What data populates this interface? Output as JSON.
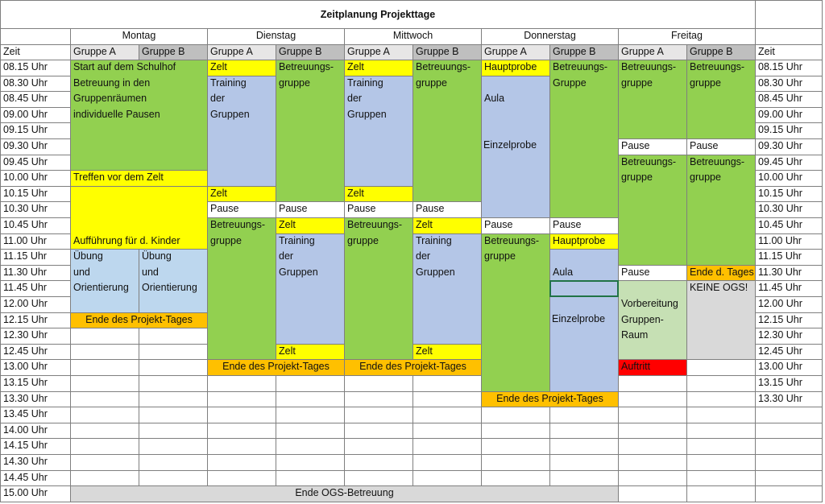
{
  "title": "Zeitplanung Projekttage",
  "time_label": "Zeit",
  "times": [
    "08.15 Uhr",
    "08.30 Uhr",
    "08.45 Uhr",
    "09.00 Uhr",
    "09.15 Uhr",
    "09.30 Uhr",
    "09.45 Uhr",
    "10.00 Uhr",
    "10.15 Uhr",
    "10.30 Uhr",
    "10.45 Uhr",
    "11.00 Uhr",
    "11.15 Uhr",
    "11.30 Uhr",
    "11.45 Uhr",
    "12.00 Uhr",
    "12.15 Uhr",
    "12.30 Uhr",
    "12.45 Uhr",
    "13.00 Uhr",
    "13.15 Uhr",
    "13.30 Uhr",
    "13.45 Uhr",
    "14.00 Uhr",
    "14.15 Uhr",
    "14.30 Uhr",
    "14.45 Uhr",
    "15.00 Uhr"
  ],
  "right_times": [
    "08.15 Uhr",
    "08.30 Uhr",
    "08.45 Uhr",
    "09.00 Uhr",
    "09.15 Uhr",
    "09.30 Uhr",
    "09.45 Uhr",
    "10.00 Uhr",
    "10.15 Uhr",
    "10.30 Uhr",
    "10.45 Uhr",
    "11.00 Uhr",
    "11.15 Uhr",
    "11.30 Uhr",
    "11.45 Uhr",
    "12.00 Uhr",
    "12.15 Uhr",
    "12.30 Uhr",
    "12.45 Uhr",
    "13.00 Uhr",
    "13.15 Uhr",
    "13.30 Uhr"
  ],
  "colors": {
    "green": "#92d050",
    "yellow": "#ffff00",
    "blue": "#b4c6e7",
    "lightblue": "#bdd7ee",
    "orange": "#ffc000",
    "gray": "#d9d9d9",
    "lightgreen": "#c6e0b4",
    "red": "#ff0000",
    "white": "#ffffff",
    "group_a_header": "#e7e6e6",
    "group_b_header": "#bfbfbf"
  },
  "groups": [
    "Gruppe A",
    "Gruppe B"
  ],
  "days": [
    {
      "name": "Montag",
      "blocks": [
        {
          "group": "AB",
          "start": "08.15 Uhr",
          "end": "09.45 Uhr",
          "color": "green",
          "lines": [
            "Start auf dem Schulhof",
            "Betreuung in den",
            "Gruppenräumen",
            "individuelle Pausen"
          ]
        },
        {
          "group": "AB",
          "start": "10.00 Uhr",
          "end": "10.00 Uhr",
          "color": "yellow",
          "lines": [
            "Treffen vor dem Zelt"
          ]
        },
        {
          "group": "AB",
          "start": "10.15 Uhr",
          "end": "11.00 Uhr",
          "color": "yellow",
          "text_at": "11.00 Uhr",
          "lines": [
            "Aufführung für d. Kinder"
          ]
        },
        {
          "group": "A",
          "start": "11.15 Uhr",
          "end": "12.00 Uhr",
          "color": "lightblue",
          "lines": [
            "Übung",
            "und",
            "Orientierung"
          ]
        },
        {
          "group": "B",
          "start": "11.15 Uhr",
          "end": "12.00 Uhr",
          "color": "lightblue",
          "lines": [
            "Übung",
            "und",
            "Orientierung"
          ]
        },
        {
          "group": "AB",
          "start": "12.15 Uhr",
          "end": "12.15 Uhr",
          "color": "orange",
          "center": true,
          "lines": [
            "Ende des Projekt-Tages"
          ]
        }
      ]
    },
    {
      "name": "Dienstag",
      "blocks": [
        {
          "group": "A",
          "start": "08.15 Uhr",
          "end": "08.15 Uhr",
          "color": "yellow",
          "lines": [
            "Zelt"
          ]
        },
        {
          "group": "A",
          "start": "08.30 Uhr",
          "end": "10.00 Uhr",
          "color": "blue",
          "lines": [
            "Training",
            "der",
            "Gruppen"
          ]
        },
        {
          "group": "A",
          "start": "10.15 Uhr",
          "end": "10.15 Uhr",
          "color": "yellow",
          "lines": [
            "Zelt"
          ]
        },
        {
          "group": "A",
          "start": "10.30 Uhr",
          "end": "10.30 Uhr",
          "color": "white",
          "lines": [
            "Pause"
          ]
        },
        {
          "group": "A",
          "start": "10.45 Uhr",
          "end": "12.45 Uhr",
          "color": "green",
          "lines": [
            "Betreuungs-",
            "gruppe"
          ]
        },
        {
          "group": "B",
          "start": "08.15 Uhr",
          "end": "10.15 Uhr",
          "color": "green",
          "lines": [
            "Betreuungs-",
            "gruppe"
          ]
        },
        {
          "group": "B",
          "start": "10.30 Uhr",
          "end": "10.30 Uhr",
          "color": "white",
          "lines": [
            "Pause"
          ]
        },
        {
          "group": "B",
          "start": "10.45 Uhr",
          "end": "10.45 Uhr",
          "color": "yellow",
          "lines": [
            "Zelt"
          ]
        },
        {
          "group": "B",
          "start": "11.00 Uhr",
          "end": "12.30 Uhr",
          "color": "blue",
          "lines": [
            "Training",
            "der",
            "Gruppen"
          ]
        },
        {
          "group": "B",
          "start": "12.45 Uhr",
          "end": "12.45 Uhr",
          "color": "yellow",
          "lines": [
            "Zelt"
          ]
        },
        {
          "group": "AB",
          "start": "13.00 Uhr",
          "end": "13.00 Uhr",
          "color": "orange",
          "center": true,
          "lines": [
            "Ende des Projekt-Tages"
          ]
        }
      ]
    },
    {
      "name": "Mittwoch",
      "blocks": [
        {
          "group": "A",
          "start": "08.15 Uhr",
          "end": "08.15 Uhr",
          "color": "yellow",
          "lines": [
            "Zelt"
          ]
        },
        {
          "group": "A",
          "start": "08.30 Uhr",
          "end": "10.00 Uhr",
          "color": "blue",
          "lines": [
            "Training",
            "der",
            "Gruppen"
          ]
        },
        {
          "group": "A",
          "start": "10.15 Uhr",
          "end": "10.15 Uhr",
          "color": "yellow",
          "lines": [
            "Zelt"
          ]
        },
        {
          "group": "A",
          "start": "10.30 Uhr",
          "end": "10.30 Uhr",
          "color": "white",
          "lines": [
            "Pause"
          ]
        },
        {
          "group": "A",
          "start": "10.45 Uhr",
          "end": "12.45 Uhr",
          "color": "green",
          "lines": [
            "Betreuungs-",
            "gruppe"
          ]
        },
        {
          "group": "B",
          "start": "08.15 Uhr",
          "end": "10.15 Uhr",
          "color": "green",
          "lines": [
            "Betreuungs-",
            "gruppe"
          ]
        },
        {
          "group": "B",
          "start": "10.30 Uhr",
          "end": "10.30 Uhr",
          "color": "white",
          "lines": [
            "Pause"
          ]
        },
        {
          "group": "B",
          "start": "10.45 Uhr",
          "end": "10.45 Uhr",
          "color": "yellow",
          "lines": [
            "Zelt"
          ]
        },
        {
          "group": "B",
          "start": "11.00 Uhr",
          "end": "12.30 Uhr",
          "color": "blue",
          "lines": [
            "Training",
            "der",
            "Gruppen"
          ]
        },
        {
          "group": "B",
          "start": "12.45 Uhr",
          "end": "12.45 Uhr",
          "color": "yellow",
          "lines": [
            "Zelt"
          ]
        },
        {
          "group": "AB",
          "start": "13.00 Uhr",
          "end": "13.00 Uhr",
          "color": "orange",
          "center": true,
          "lines": [
            "Ende des Projekt-Tages"
          ]
        }
      ]
    },
    {
      "name": "Donnerstag",
      "blocks": [
        {
          "group": "A",
          "start": "08.15 Uhr",
          "end": "08.15 Uhr",
          "color": "yellow",
          "lines": [
            "Hauptprobe"
          ]
        },
        {
          "group": "A",
          "start": "08.30 Uhr",
          "end": "10.30 Uhr",
          "color": "blue",
          "text_at": "08.45 Uhr",
          "lines": [
            "Aula"
          ]
        },
        {
          "group": "A",
          "start": "09.30 Uhr",
          "end": "09.30 Uhr",
          "color": "none",
          "lines": [
            "Einzelprobe"
          ]
        },
        {
          "group": "A",
          "start": "10.45 Uhr",
          "end": "10.45 Uhr",
          "color": "white",
          "lines": [
            "Pause"
          ]
        },
        {
          "group": "A",
          "start": "11.00 Uhr",
          "end": "13.15 Uhr",
          "color": "green",
          "lines": [
            "Betreuungs-",
            "gruppe"
          ]
        },
        {
          "group": "B",
          "start": "08.15 Uhr",
          "end": "10.30 Uhr",
          "color": "green",
          "lines": [
            "Betreuungs-",
            "Gruppe"
          ]
        },
        {
          "group": "B",
          "start": "10.45 Uhr",
          "end": "10.45 Uhr",
          "color": "white",
          "lines": [
            "Pause"
          ]
        },
        {
          "group": "B",
          "start": "11.00 Uhr",
          "end": "11.00 Uhr",
          "color": "yellow",
          "lines": [
            "Hauptprobe"
          ]
        },
        {
          "group": "B",
          "start": "11.15 Uhr",
          "end": "13.15 Uhr",
          "color": "blue",
          "text_at": "11.30 Uhr",
          "lines": [
            "Aula"
          ]
        },
        {
          "group": "B",
          "start": "12.15 Uhr",
          "end": "12.15 Uhr",
          "color": "none",
          "lines": [
            "Einzelprobe"
          ]
        },
        {
          "group": "AB",
          "start": "13.30 Uhr",
          "end": "13.30 Uhr",
          "color": "orange",
          "center": true,
          "lines": [
            "Ende des Projekt-Tages"
          ]
        }
      ]
    },
    {
      "name": "Freitag",
      "blocks": [
        {
          "group": "A",
          "start": "08.15 Uhr",
          "end": "09.15 Uhr",
          "color": "green",
          "lines": [
            "Betreuungs-",
            "gruppe"
          ]
        },
        {
          "group": "A",
          "start": "09.30 Uhr",
          "end": "09.30 Uhr",
          "color": "white",
          "lines": [
            "Pause"
          ]
        },
        {
          "group": "A",
          "start": "09.45 Uhr",
          "end": "11.15 Uhr",
          "color": "green",
          "lines": [
            "Betreuungs-",
            "gruppe"
          ]
        },
        {
          "group": "A",
          "start": "11.30 Uhr",
          "end": "11.30 Uhr",
          "color": "white",
          "lines": [
            "Pause"
          ]
        },
        {
          "group": "A",
          "start": "11.45 Uhr",
          "end": "12.45 Uhr",
          "color": "lightgreen",
          "text_at": "12.00 Uhr",
          "lines": [
            "Vorbereitung",
            "Gruppen-",
            "Raum"
          ]
        },
        {
          "group": "A",
          "start": "13.00 Uhr",
          "end": "13.00 Uhr",
          "color": "red",
          "lines": [
            "Auftritt"
          ]
        },
        {
          "group": "B",
          "start": "08.15 Uhr",
          "end": "09.15 Uhr",
          "color": "green",
          "lines": [
            "Betreuungs-",
            "gruppe"
          ]
        },
        {
          "group": "B",
          "start": "09.30 Uhr",
          "end": "09.30 Uhr",
          "color": "white",
          "lines": [
            "Pause"
          ]
        },
        {
          "group": "B",
          "start": "09.45 Uhr",
          "end": "11.15 Uhr",
          "color": "green",
          "lines": [
            "Betreuungs-",
            "gruppe"
          ]
        },
        {
          "group": "B",
          "start": "11.30 Uhr",
          "end": "11.30 Uhr",
          "color": "orange",
          "lines": [
            "Ende d. Tages"
          ]
        },
        {
          "group": "B",
          "start": "11.45 Uhr",
          "end": "12.45 Uhr",
          "color": "gray",
          "lines": [
            "KEINE OGS!"
          ]
        }
      ]
    }
  ],
  "footer_bar": {
    "text": "Ende OGS-Betreuung",
    "color": "gray",
    "from_day": "Montag",
    "to_day": "Donnerstag",
    "time": "15.00 Uhr"
  },
  "selected_cell": {
    "day": "Donnerstag",
    "group": "B",
    "time": "11.45 Uhr"
  }
}
